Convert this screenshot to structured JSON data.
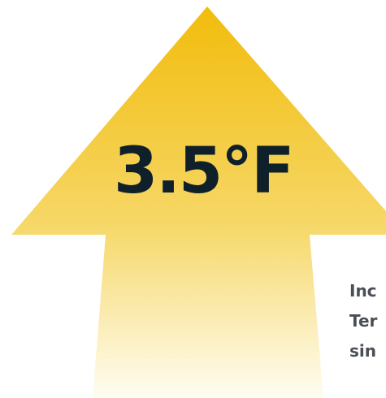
{
  "graphic": {
    "value": "3.5°F",
    "caption_lines": [
      "Inc",
      "Ter",
      "sin"
    ],
    "colors": {
      "arrow_top": "#f2bc0c",
      "arrow_mid": "#f6d766",
      "arrow_bottom": "#fffdf3",
      "value_text": "#10202b",
      "caption_text": "#4a4e55"
    },
    "icon": "up-arrow-icon"
  }
}
